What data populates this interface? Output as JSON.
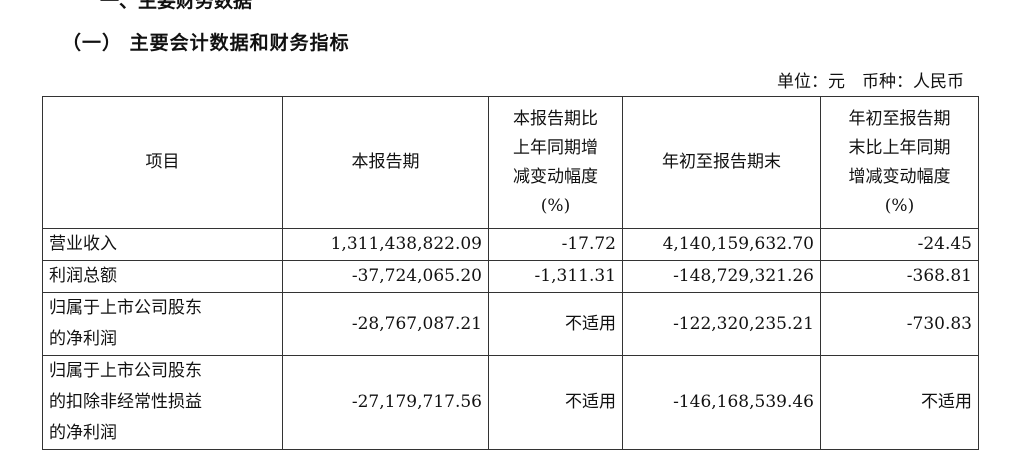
{
  "top_heading_partial": "一、主要财务数据",
  "section_title": "（一） 主要会计数据和财务指标",
  "unit_note": "单位：元　币种：人民币",
  "table": {
    "headers": [
      "项目",
      "本报告期",
      "本报告期比上年同期增减变动幅度(%)",
      "年初至报告期末",
      "年初至报告期末比上年同期增减变动幅度(%)"
    ],
    "header_lines": {
      "h2": [
        "本报告期比",
        "上年同期增",
        "减变动幅度",
        "(%)"
      ],
      "h4": [
        "年初至报告期",
        "末比上年同期",
        "增减变动幅度",
        "(%)"
      ]
    },
    "rows": [
      {
        "item": "营业收入",
        "item_lines": [
          "营业收入"
        ],
        "current": "1,311,438,822.09",
        "current_change": "-17.72",
        "ytd": "4,140,159,632.70",
        "ytd_change": "-24.45"
      },
      {
        "item": "利润总额",
        "item_lines": [
          "利润总额"
        ],
        "current": "-37,724,065.20",
        "current_change": "-1,311.31",
        "ytd": "-148,729,321.26",
        "ytd_change": "-368.81"
      },
      {
        "item": "归属于上市公司股东的净利润",
        "item_lines": [
          "归属于上市公司股东",
          "的净利润"
        ],
        "current": "-28,767,087.21",
        "current_change": "不适用",
        "ytd": "-122,320,235.21",
        "ytd_change": "-730.83"
      },
      {
        "item": "归属于上市公司股东的扣除非经常性损益的净利润",
        "item_lines": [
          "归属于上市公司股东",
          "的扣除非经常性损益",
          "的净利润"
        ],
        "current": "-27,179,717.56",
        "current_change": "不适用",
        "ytd": "-146,168,539.46",
        "ytd_change": "不适用"
      }
    ]
  }
}
